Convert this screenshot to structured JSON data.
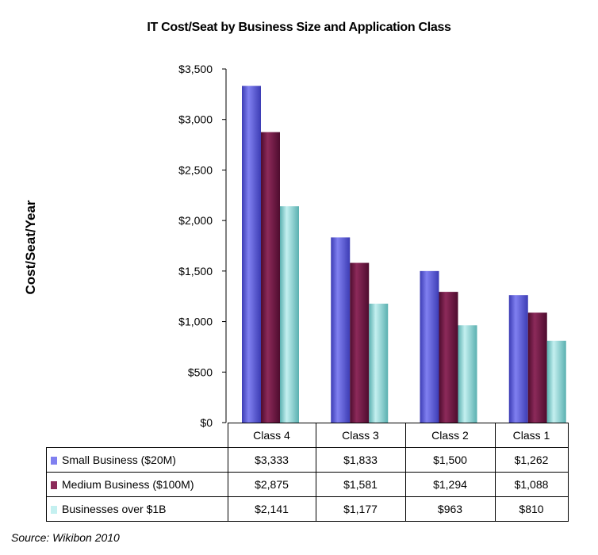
{
  "chart_data": {
    "type": "bar",
    "title": "IT Cost/Seat by Business Size and Application Class",
    "ylabel": "Cost/Seat/Year",
    "xlabel": "",
    "ylim": [
      0,
      3500
    ],
    "yticks": [
      "$3,500",
      "$3,000",
      "$2,500",
      "$2,000",
      "$1,500",
      "$1,000",
      "$500",
      "$0"
    ],
    "categories": [
      "Class 4",
      "Class 3",
      "Class 2",
      "Class 1"
    ],
    "series": [
      {
        "name": "Small Business ($20M)",
        "values": [
          3333,
          1833,
          1500,
          1262
        ],
        "labels": [
          "$3,333",
          "$1,833",
          "$1,500",
          "$1,262"
        ],
        "color": "#8080f0",
        "dark": "#3c3cb4"
      },
      {
        "name": "Medium Business ($100M)",
        "values": [
          2875,
          1581,
          1294,
          1088
        ],
        "labels": [
          "$2,875",
          "$1,581",
          "$1,294",
          "$1,088"
        ],
        "color": "#8c2a5a",
        "dark": "#4e0c2e"
      },
      {
        "name": "Businesses over $1B",
        "values": [
          2141,
          1177,
          963,
          810
        ],
        "labels": [
          "$2,141",
          "$1,177",
          "$963",
          "$810"
        ],
        "color": "#c4f0f0",
        "dark": "#5ab0b0"
      }
    ],
    "grid": false,
    "legend": "data-table"
  },
  "source": "Source: Wikibon 2010"
}
